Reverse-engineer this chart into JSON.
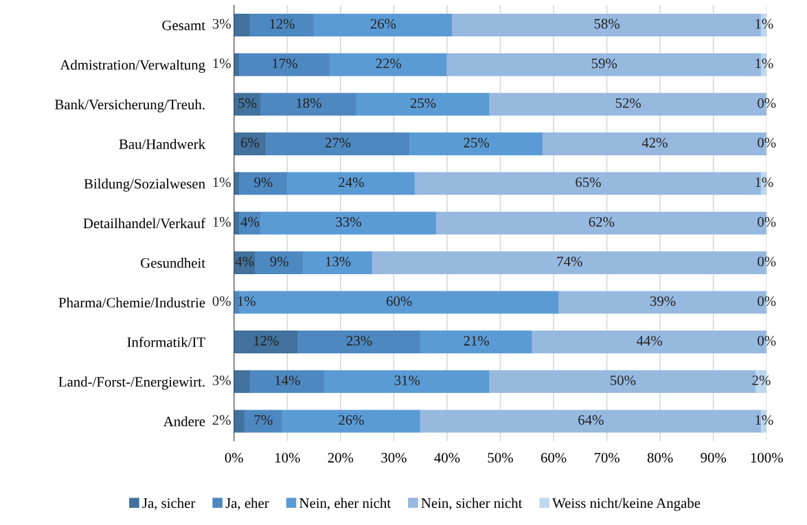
{
  "chart_data": {
    "type": "bar",
    "orientation": "horizontal",
    "stacked": true,
    "categories": [
      "Gesamt",
      "Admistration/Verwaltung",
      "Bank/Versicherung/Treuh.",
      "Bau/Handwerk",
      "Bildung/Sozialwesen",
      "Detailhandel/Verkauf",
      "Gesundheit",
      "Pharma/Chemie/Industrie",
      "Informatik/IT",
      "Land-/Forst-/Energiewirt.",
      "Andere"
    ],
    "series": [
      {
        "name": "Ja, sicher",
        "color": "#41719c",
        "values": [
          3,
          1,
          5,
          6,
          1,
          1,
          4,
          0,
          12,
          3,
          2
        ],
        "value_labels": [
          "3%",
          "1%",
          "5%",
          "6%",
          "1%",
          "1%",
          "4%",
          "0%",
          "12%",
          "3%",
          "2%"
        ]
      },
      {
        "name": "Ja, eher",
        "color": "#4e88c0",
        "values": [
          12,
          17,
          18,
          27,
          9,
          4,
          9,
          1,
          23,
          14,
          7
        ],
        "value_labels": [
          "12%",
          "17%",
          "18%",
          "27%",
          "9%",
          "4%",
          "9%",
          "1%",
          "23%",
          "14%",
          "7%"
        ]
      },
      {
        "name": "Nein, eher nicht",
        "color": "#5b9bd5",
        "values": [
          26,
          22,
          25,
          25,
          24,
          33,
          13,
          60,
          21,
          31,
          26
        ],
        "value_labels": [
          "26%",
          "22%",
          "25%",
          "25%",
          "24%",
          "33%",
          "13%",
          "60%",
          "21%",
          "31%",
          "26%"
        ]
      },
      {
        "name": "Nein, sicher nicht",
        "color": "#97b9e0",
        "values": [
          58,
          59,
          52,
          42,
          65,
          62,
          74,
          39,
          44,
          50,
          64
        ],
        "value_labels": [
          "58%",
          "59%",
          "52%",
          "42%",
          "65%",
          "62%",
          "74%",
          "39%",
          "44%",
          "50%",
          "64%"
        ]
      },
      {
        "name": "Weiss nicht/keine Angabe",
        "color": "#bdd7ee",
        "values": [
          1,
          1,
          0,
          0,
          1,
          0,
          0,
          0,
          0,
          2,
          1
        ],
        "value_labels": [
          "1%",
          "1%",
          "0%",
          "0%",
          "1%",
          "0%",
          "0%",
          "0%",
          "0%",
          "2%",
          "1%"
        ]
      }
    ],
    "xlim": [
      0,
      100
    ],
    "xticks": [
      {
        "value": 0,
        "label": "0%"
      },
      {
        "value": 10,
        "label": "10%"
      },
      {
        "value": 20,
        "label": "20%"
      },
      {
        "value": 30,
        "label": "30%"
      },
      {
        "value": 40,
        "label": "40%"
      },
      {
        "value": 50,
        "label": "50%"
      },
      {
        "value": 60,
        "label": "60%"
      },
      {
        "value": 70,
        "label": "70%"
      },
      {
        "value": 80,
        "label": "80%"
      },
      {
        "value": 90,
        "label": "90%"
      },
      {
        "value": 100,
        "label": "100%"
      }
    ],
    "grid": "x",
    "legend": "bottom"
  }
}
